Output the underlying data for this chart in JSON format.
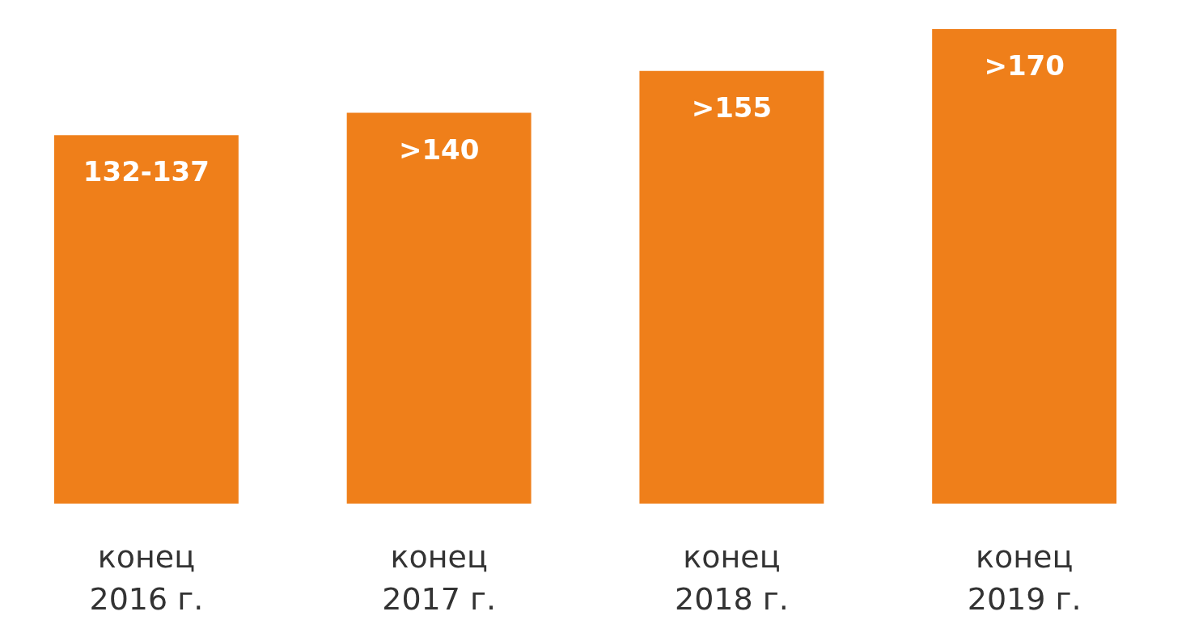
{
  "chart_data": {
    "type": "bar",
    "tick_labels": "x",
    "categories": [
      "конец\n2016 г.",
      "конец\n2017 г.",
      "конец\n2018 г.",
      "конец\n2019 г."
    ],
    "values": [
      132,
      140,
      155,
      170
    ],
    "value_labels": [
      "132-137",
      ">140",
      ">155",
      ">170"
    ],
    "color": "#ef7f1a"
  }
}
